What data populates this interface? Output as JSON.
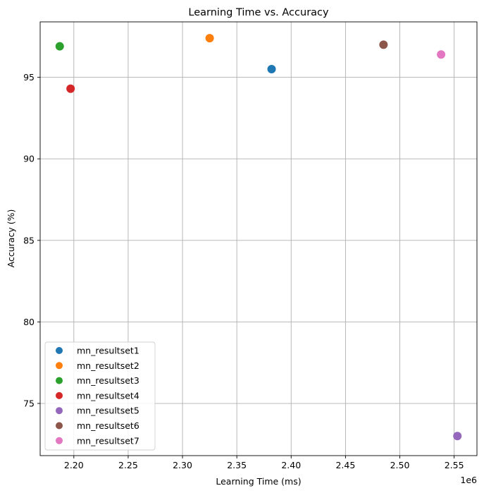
{
  "chart_data": {
    "type": "scatter",
    "title": "Learning Time vs. Accuracy",
    "xlabel": "Learning Time (ms)",
    "ylabel": "Accuracy (%)",
    "x_offset_label": "1e6",
    "xlim": [
      2.169,
      2.571
    ],
    "ylim": [
      71.8,
      98.4
    ],
    "x_ticks": [
      2.2,
      2.25,
      2.3,
      2.35,
      2.4,
      2.45,
      2.5,
      2.55
    ],
    "x_tick_labels": [
      "2.20",
      "2.25",
      "2.30",
      "2.35",
      "2.40",
      "2.45",
      "2.50",
      "2.55"
    ],
    "y_ticks": [
      75,
      80,
      85,
      90,
      95
    ],
    "y_tick_labels": [
      "75",
      "80",
      "85",
      "90",
      "95"
    ],
    "grid": true,
    "legend_position": "lower-left",
    "series": [
      {
        "name": "mn_resultset1",
        "color": "#1f77b4",
        "x": 2.382,
        "y": 95.5
      },
      {
        "name": "mn_resultset2",
        "color": "#ff7f0e",
        "x": 2.325,
        "y": 97.4
      },
      {
        "name": "mn_resultset3",
        "color": "#2ca02c",
        "x": 2.187,
        "y": 96.9
      },
      {
        "name": "mn_resultset4",
        "color": "#d62728",
        "x": 2.197,
        "y": 94.3
      },
      {
        "name": "mn_resultset5",
        "color": "#9467bd",
        "x": 2.553,
        "y": 73.0
      },
      {
        "name": "mn_resultset6",
        "color": "#8c564b",
        "x": 2.485,
        "y": 97.0
      },
      {
        "name": "mn_resultset7",
        "color": "#e377c2",
        "x": 2.538,
        "y": 96.4
      }
    ]
  }
}
